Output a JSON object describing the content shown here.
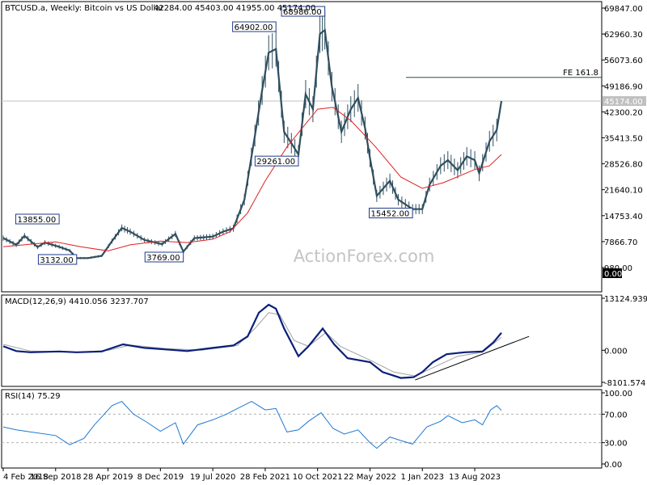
{
  "chart_data": {
    "type": "candlestick",
    "title": "BTCUSD.a, Weekly:  Bitcoin vs US Dollar",
    "ohlc_readout": "42284.00 45403.00 41955.00 45174.00",
    "watermark": "ActionForex.com",
    "x_tick_labels": [
      "4 Feb 2018",
      "16 Sep 2018",
      "28 Apr 2019",
      "8 Dec 2019",
      "19 Jul 2020",
      "28 Feb 2021",
      "10 Oct 2021",
      "22 May 2022",
      "1 Jan 2023",
      "13 Aug 2023"
    ],
    "price_panel": {
      "y_ticks": [
        "69847.00",
        "62960.30",
        "56073.60",
        "49186.90",
        "42300.20",
        "35413.50",
        "28526.80",
        "21640.10",
        "14753.40",
        "7866.70",
        "980.00"
      ],
      "ylim": [
        980,
        69847
      ],
      "current_price_label": "45174.00",
      "fe_level": {
        "label": "FE 161.8",
        "value": 51450
      },
      "annotations": [
        {
          "text": "13855.00",
          "x": "2018-10-01",
          "y": 13855
        },
        {
          "text": "3132.00",
          "x": "2018-12-15",
          "y": 3132
        },
        {
          "text": "3769.00",
          "x": "2020-03-15",
          "y": 3769
        },
        {
          "text": "64902.00",
          "x": "2021-04-15",
          "y": 64902
        },
        {
          "text": "29261.00",
          "x": "2021-07-20",
          "y": 29261
        },
        {
          "text": "68986.00",
          "x": "2021-11-10",
          "y": 68986
        },
        {
          "text": "15452.00",
          "x": "2022-11-20",
          "y": 15452
        }
      ],
      "close_series": [
        {
          "x": "2018-02-04",
          "y": 8800
        },
        {
          "x": "2018-04-01",
          "y": 7000
        },
        {
          "x": "2018-05-06",
          "y": 9400
        },
        {
          "x": "2018-07-01",
          "y": 6400
        },
        {
          "x": "2018-08-01",
          "y": 7600
        },
        {
          "x": "2018-10-01",
          "y": 6500
        },
        {
          "x": "2018-11-15",
          "y": 5500
        },
        {
          "x": "2018-12-15",
          "y": 3500
        },
        {
          "x": "2019-02-01",
          "y": 3500
        },
        {
          "x": "2019-04-01",
          "y": 4100
        },
        {
          "x": "2019-05-15",
          "y": 8000
        },
        {
          "x": "2019-06-26",
          "y": 11500
        },
        {
          "x": "2019-08-01",
          "y": 10500
        },
        {
          "x": "2019-10-01",
          "y": 8300
        },
        {
          "x": "2019-12-15",
          "y": 7200
        },
        {
          "x": "2020-02-10",
          "y": 9900
        },
        {
          "x": "2020-03-15",
          "y": 5200
        },
        {
          "x": "2020-05-01",
          "y": 8800
        },
        {
          "x": "2020-07-19",
          "y": 9200
        },
        {
          "x": "2020-09-01",
          "y": 10500
        },
        {
          "x": "2020-10-15",
          "y": 11400
        },
        {
          "x": "2020-12-01",
          "y": 19000
        },
        {
          "x": "2021-01-15",
          "y": 36000
        },
        {
          "x": "2021-02-15",
          "y": 48000
        },
        {
          "x": "2021-03-15",
          "y": 58000
        },
        {
          "x": "2021-04-15",
          "y": 59000
        },
        {
          "x": "2021-05-20",
          "y": 37000
        },
        {
          "x": "2021-06-20",
          "y": 34000
        },
        {
          "x": "2021-07-20",
          "y": 31000
        },
        {
          "x": "2021-08-20",
          "y": 47000
        },
        {
          "x": "2021-09-20",
          "y": 43000
        },
        {
          "x": "2021-10-20",
          "y": 63000
        },
        {
          "x": "2021-11-10",
          "y": 64000
        },
        {
          "x": "2021-12-10",
          "y": 49000
        },
        {
          "x": "2022-01-20",
          "y": 37000
        },
        {
          "x": "2022-03-01",
          "y": 43000
        },
        {
          "x": "2022-04-01",
          "y": 46000
        },
        {
          "x": "2022-05-01",
          "y": 38000
        },
        {
          "x": "2022-05-22",
          "y": 30000
        },
        {
          "x": "2022-06-20",
          "y": 20000
        },
        {
          "x": "2022-08-15",
          "y": 24000
        },
        {
          "x": "2022-09-20",
          "y": 19000
        },
        {
          "x": "2022-11-20",
          "y": 16500
        },
        {
          "x": "2023-01-01",
          "y": 16500
        },
        {
          "x": "2023-02-01",
          "y": 23000
        },
        {
          "x": "2023-03-20",
          "y": 28000
        },
        {
          "x": "2023-04-20",
          "y": 29500
        },
        {
          "x": "2023-06-01",
          "y": 26800
        },
        {
          "x": "2023-07-10",
          "y": 30500
        },
        {
          "x": "2023-08-13",
          "y": 29500
        },
        {
          "x": "2023-09-01",
          "y": 26000
        },
        {
          "x": "2023-10-15",
          "y": 34500
        },
        {
          "x": "2023-11-15",
          "y": 37500
        },
        {
          "x": "2023-12-05",
          "y": 45174
        }
      ],
      "ma_series": [
        {
          "x": "2018-02-04",
          "y": 6500
        },
        {
          "x": "2018-09-16",
          "y": 7800
        },
        {
          "x": "2019-01-01",
          "y": 6500
        },
        {
          "x": "2019-04-28",
          "y": 5400
        },
        {
          "x": "2019-08-01",
          "y": 7000
        },
        {
          "x": "2019-12-08",
          "y": 8000
        },
        {
          "x": "2020-04-01",
          "y": 7600
        },
        {
          "x": "2020-07-19",
          "y": 8500
        },
        {
          "x": "2020-10-01",
          "y": 10500
        },
        {
          "x": "2020-12-15",
          "y": 15500
        },
        {
          "x": "2021-02-28",
          "y": 24000
        },
        {
          "x": "2021-06-01",
          "y": 33000
        },
        {
          "x": "2021-10-10",
          "y": 43000
        },
        {
          "x": "2021-12-15",
          "y": 43500
        },
        {
          "x": "2022-03-01",
          "y": 40000
        },
        {
          "x": "2022-06-15",
          "y": 33000
        },
        {
          "x": "2022-10-01",
          "y": 25000
        },
        {
          "x": "2023-01-01",
          "y": 22000
        },
        {
          "x": "2023-04-01",
          "y": 23500
        },
        {
          "x": "2023-08-13",
          "y": 27000
        },
        {
          "x": "2023-10-15",
          "y": 28000
        },
        {
          "x": "2023-12-05",
          "y": 31000
        }
      ]
    },
    "macd_panel": {
      "label": "MACD(12,26,9) 4410.056 3237.707",
      "y_ticks": [
        "13124.939",
        "0.000",
        "-8101.574"
      ],
      "ylim": [
        -8101.574,
        13124.939
      ],
      "macd_series": [
        {
          "x": "2018-02-04",
          "y": 1000
        },
        {
          "x": "2018-04-01",
          "y": -200
        },
        {
          "x": "2018-06-01",
          "y": -500
        },
        {
          "x": "2018-10-01",
          "y": -300
        },
        {
          "x": "2018-12-15",
          "y": -500
        },
        {
          "x": "2019-04-01",
          "y": -300
        },
        {
          "x": "2019-07-01",
          "y": 1500
        },
        {
          "x": "2019-10-01",
          "y": 600
        },
        {
          "x": "2020-01-01",
          "y": 200
        },
        {
          "x": "2020-04-01",
          "y": -200
        },
        {
          "x": "2020-07-19",
          "y": 600
        },
        {
          "x": "2020-10-15",
          "y": 1200
        },
        {
          "x": "2020-12-15",
          "y": 3500
        },
        {
          "x": "2021-02-01",
          "y": 9500
        },
        {
          "x": "2021-03-15",
          "y": 11500
        },
        {
          "x": "2021-04-15",
          "y": 10500
        },
        {
          "x": "2021-05-20",
          "y": 5500
        },
        {
          "x": "2021-07-20",
          "y": -1500
        },
        {
          "x": "2021-09-01",
          "y": 1000
        },
        {
          "x": "2021-11-01",
          "y": 5500
        },
        {
          "x": "2021-12-20",
          "y": 1500
        },
        {
          "x": "2022-02-15",
          "y": -2000
        },
        {
          "x": "2022-05-22",
          "y": -3000
        },
        {
          "x": "2022-07-15",
          "y": -5500
        },
        {
          "x": "2022-10-01",
          "y": -7000
        },
        {
          "x": "2022-11-25",
          "y": -6800
        },
        {
          "x": "2023-01-01",
          "y": -5500
        },
        {
          "x": "2023-02-15",
          "y": -3000
        },
        {
          "x": "2023-04-15",
          "y": -1000
        },
        {
          "x": "2023-07-01",
          "y": -500
        },
        {
          "x": "2023-09-15",
          "y": -300
        },
        {
          "x": "2023-11-01",
          "y": 2000
        },
        {
          "x": "2023-12-05",
          "y": 4410
        }
      ],
      "signal_series": [
        {
          "x": "2018-02-04",
          "y": 1500
        },
        {
          "x": "2018-06-01",
          "y": -200
        },
        {
          "x": "2018-12-15",
          "y": -500
        },
        {
          "x": "2019-05-01",
          "y": 0
        },
        {
          "x": "2019-08-01",
          "y": 1300
        },
        {
          "x": "2020-01-01",
          "y": 400
        },
        {
          "x": "2020-06-01",
          "y": 0
        },
        {
          "x": "2020-11-01",
          "y": 1200
        },
        {
          "x": "2021-01-15",
          "y": 5500
        },
        {
          "x": "2021-03-15",
          "y": 9500
        },
        {
          "x": "2021-05-01",
          "y": 9000
        },
        {
          "x": "2021-07-01",
          "y": 2500
        },
        {
          "x": "2021-09-01",
          "y": 1000
        },
        {
          "x": "2021-11-15",
          "y": 4500
        },
        {
          "x": "2022-01-15",
          "y": 1000
        },
        {
          "x": "2022-05-22",
          "y": -2500
        },
        {
          "x": "2022-09-01",
          "y": -5500
        },
        {
          "x": "2022-12-01",
          "y": -6500
        },
        {
          "x": "2023-03-01",
          "y": -4000
        },
        {
          "x": "2023-06-01",
          "y": -1500
        },
        {
          "x": "2023-09-15",
          "y": -500
        },
        {
          "x": "2023-12-05",
          "y": 3238
        }
      ],
      "trendline": [
        {
          "x": "2022-12-01",
          "y": -7500
        },
        {
          "x": "2024-04-01",
          "y": 3500
        }
      ]
    },
    "rsi_panel": {
      "label": "RSI(14) 75.29",
      "y_ticks": [
        "100.00",
        "70.00",
        "30.00",
        "0.00"
      ],
      "ylim": [
        0,
        100
      ],
      "levels": [
        70,
        30
      ],
      "rsi_series": [
        {
          "x": "2018-02-04",
          "y": 52
        },
        {
          "x": "2018-04-01",
          "y": 48
        },
        {
          "x": "2018-06-01",
          "y": 45
        },
        {
          "x": "2018-09-16",
          "y": 40
        },
        {
          "x": "2018-11-15",
          "y": 27
        },
        {
          "x": "2019-01-15",
          "y": 36
        },
        {
          "x": "2019-03-01",
          "y": 55
        },
        {
          "x": "2019-05-15",
          "y": 82
        },
        {
          "x": "2019-06-26",
          "y": 88
        },
        {
          "x": "2019-08-15",
          "y": 70
        },
        {
          "x": "2019-10-15",
          "y": 58
        },
        {
          "x": "2019-12-08",
          "y": 46
        },
        {
          "x": "2020-02-10",
          "y": 58
        },
        {
          "x": "2020-03-15",
          "y": 28
        },
        {
          "x": "2020-05-15",
          "y": 55
        },
        {
          "x": "2020-07-19",
          "y": 62
        },
        {
          "x": "2020-09-15",
          "y": 70
        },
        {
          "x": "2020-11-01",
          "y": 78
        },
        {
          "x": "2021-01-01",
          "y": 88
        },
        {
          "x": "2021-02-28",
          "y": 76
        },
        {
          "x": "2021-04-15",
          "y": 78
        },
        {
          "x": "2021-06-01",
          "y": 45
        },
        {
          "x": "2021-07-20",
          "y": 48
        },
        {
          "x": "2021-09-01",
          "y": 60
        },
        {
          "x": "2021-10-25",
          "y": 72
        },
        {
          "x": "2021-12-15",
          "y": 50
        },
        {
          "x": "2022-02-01",
          "y": 42
        },
        {
          "x": "2022-04-01",
          "y": 48
        },
        {
          "x": "2022-05-22",
          "y": 30
        },
        {
          "x": "2022-06-20",
          "y": 22
        },
        {
          "x": "2022-08-15",
          "y": 38
        },
        {
          "x": "2022-10-01",
          "y": 33
        },
        {
          "x": "2022-11-20",
          "y": 28
        },
        {
          "x": "2023-01-20",
          "y": 52
        },
        {
          "x": "2023-03-20",
          "y": 60
        },
        {
          "x": "2023-04-20",
          "y": 68
        },
        {
          "x": "2023-06-20",
          "y": 58
        },
        {
          "x": "2023-08-13",
          "y": 62
        },
        {
          "x": "2023-09-15",
          "y": 55
        },
        {
          "x": "2023-10-20",
          "y": 76
        },
        {
          "x": "2023-11-15",
          "y": 82
        },
        {
          "x": "2023-12-05",
          "y": 75.29
        }
      ]
    }
  }
}
